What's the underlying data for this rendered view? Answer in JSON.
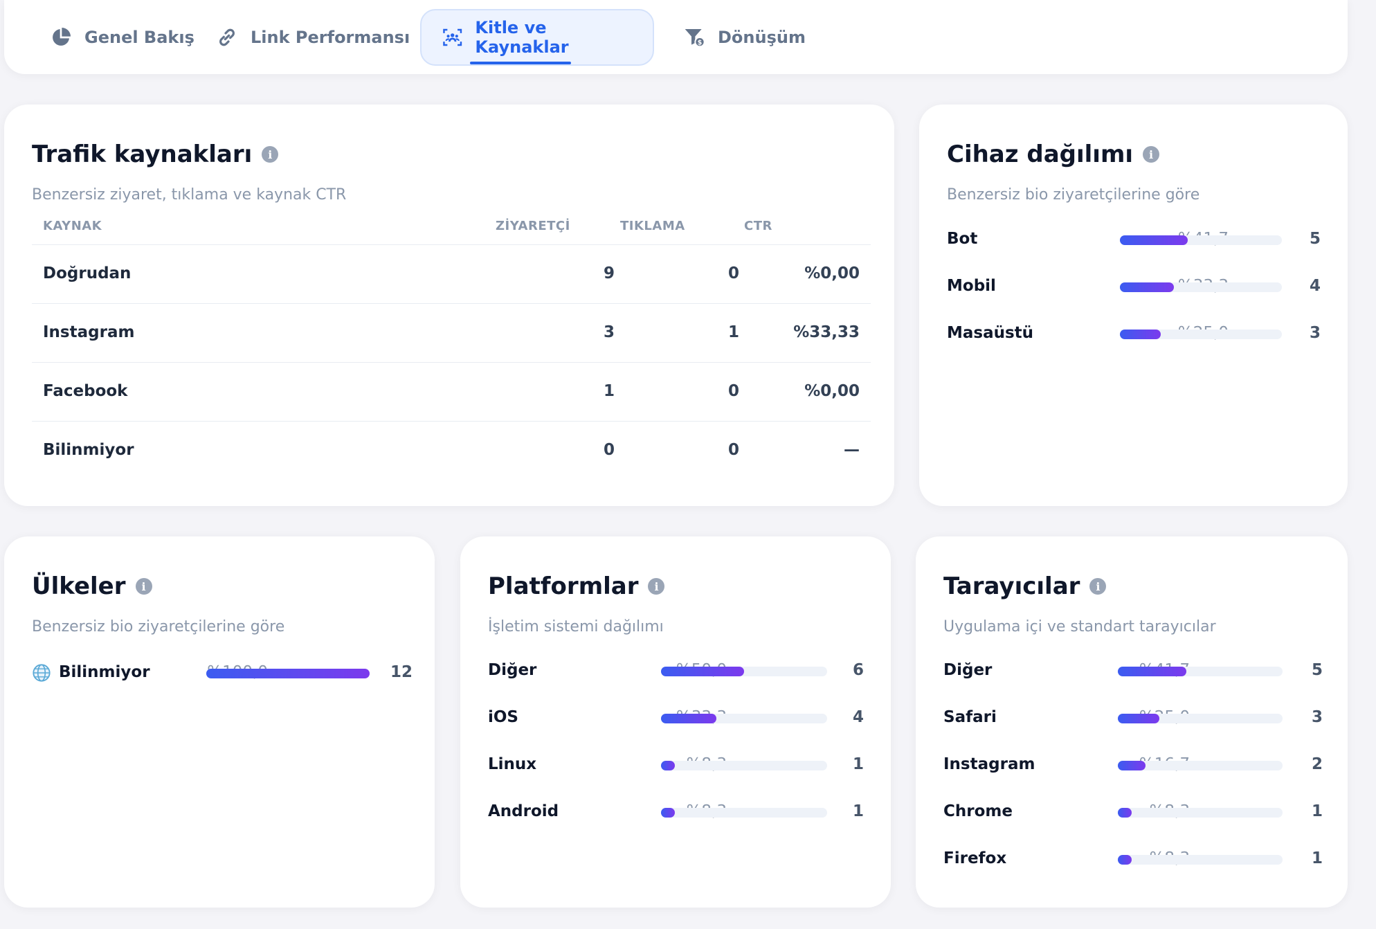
{
  "tabs": [
    {
      "label": "Genel Bakış",
      "icon": "pie-chart-icon",
      "active": false
    },
    {
      "label": "Link Performansı",
      "icon": "link-icon",
      "active": false
    },
    {
      "label": "Kitle ve Kaynaklar",
      "icon": "audience-icon",
      "active": true
    },
    {
      "label": "Dönüşüm",
      "icon": "funnel-dollar-icon",
      "active": false
    }
  ],
  "traffic": {
    "title": "Trafik kaynakları",
    "subtitle": "Benzersiz ziyaret, tıklama ve kaynak CTR",
    "columns": [
      "KAYNAK",
      "ZİYARETÇİ",
      "TIKLAMA",
      "CTR"
    ],
    "rows": [
      {
        "source": "Doğrudan",
        "visitors": "9",
        "clicks": "0",
        "ctr": "%0,00"
      },
      {
        "source": "Instagram",
        "visitors": "3",
        "clicks": "1",
        "ctr": "%33,33"
      },
      {
        "source": "Facebook",
        "visitors": "1",
        "clicks": "0",
        "ctr": "%0,00"
      },
      {
        "source": "Bilinmiyor",
        "visitors": "0",
        "clicks": "0",
        "ctr": "—"
      }
    ]
  },
  "devices": {
    "title": "Cihaz dağılımı",
    "subtitle": "Benzersiz bio ziyaretçilerine göre",
    "items": [
      {
        "label": "Bot",
        "pct": "%41,7",
        "fraction": 0.417,
        "count": "5"
      },
      {
        "label": "Mobil",
        "pct": "%33,3",
        "fraction": 0.333,
        "count": "4"
      },
      {
        "label": "Masaüstü",
        "pct": "%25,0",
        "fraction": 0.25,
        "count": "3"
      }
    ]
  },
  "countries": {
    "title": "Ülkeler",
    "subtitle": "Benzersiz bio ziyaretçilerine göre",
    "items": [
      {
        "label": "Bilinmiyor",
        "icon": "globe-icon",
        "pct": "%100,0",
        "fraction": 1.0,
        "count": "12"
      }
    ]
  },
  "platforms": {
    "title": "Platformlar",
    "subtitle": "İşletim sistemi dağılımı",
    "items": [
      {
        "label": "Diğer",
        "pct": "%50,0",
        "fraction": 0.5,
        "count": "6"
      },
      {
        "label": "iOS",
        "pct": "%33,3",
        "fraction": 0.333,
        "count": "4"
      },
      {
        "label": "Linux",
        "pct": "%8,3",
        "fraction": 0.083,
        "count": "1"
      },
      {
        "label": "Android",
        "pct": "%8,3",
        "fraction": 0.083,
        "count": "1"
      }
    ]
  },
  "browsers": {
    "title": "Tarayıcılar",
    "subtitle": "Uygulama içi ve standart tarayıcılar",
    "items": [
      {
        "label": "Diğer",
        "pct": "%41,7",
        "fraction": 0.417,
        "count": "5"
      },
      {
        "label": "Safari",
        "pct": "%25,0",
        "fraction": 0.25,
        "count": "3"
      },
      {
        "label": "Instagram",
        "pct": "%16,7",
        "fraction": 0.167,
        "count": "2"
      },
      {
        "label": "Chrome",
        "pct": "%8,3",
        "fraction": 0.083,
        "count": "1"
      },
      {
        "label": "Firefox",
        "pct": "%8,3",
        "fraction": 0.083,
        "count": "1"
      }
    ]
  },
  "colors": {
    "accent": "#2563eb",
    "bar_gradient_start": "#3b5cf0",
    "bar_gradient_end": "#7c3aed",
    "muted_text": "#8a97aa"
  }
}
